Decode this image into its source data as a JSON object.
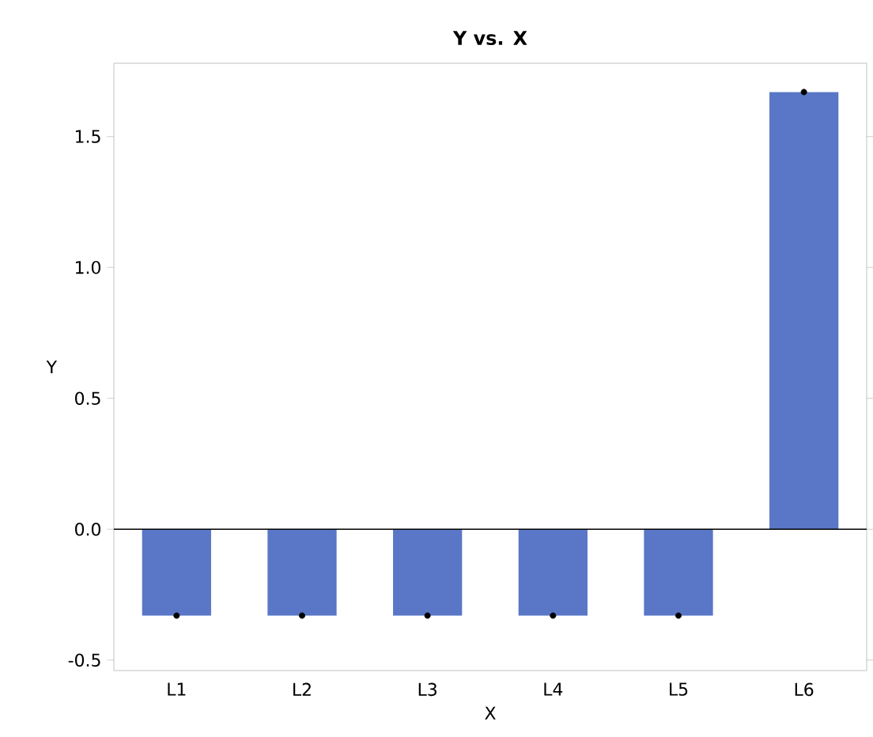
{
  "chart_data": {
    "type": "bar",
    "title": "Y vs. X",
    "xlabel": "X",
    "ylabel": "Y",
    "categories": [
      "L1",
      "L2",
      "L3",
      "L4",
      "L5",
      "L6"
    ],
    "series": [
      {
        "color": "#5977c6",
        "values": [
          -0.33,
          -0.33,
          -0.33,
          -0.33,
          -0.33,
          1.67
        ]
      },
      {
        "type": "scatter",
        "color": "#000000",
        "marker": "circle",
        "x": [
          "L1",
          "L2",
          "L3",
          "L4",
          "L5",
          "L6"
        ],
        "values": [
          -0.33,
          -0.33,
          -0.33,
          -0.33,
          -0.33,
          1.67
        ]
      }
    ],
    "ylim": [
      -0.54,
      1.78
    ],
    "yticks": [
      {
        "value": -0.5,
        "label": "-0.5"
      },
      {
        "value": 0,
        "label": "0.0"
      },
      {
        "value": 0.5,
        "label": "0.5"
      },
      {
        "value": 1,
        "label": "1.0"
      },
      {
        "value": 1.5,
        "label": "1.5"
      }
    ],
    "ref_lines": [
      {
        "axis": "y",
        "value": 0,
        "color": "#000000"
      }
    ]
  }
}
